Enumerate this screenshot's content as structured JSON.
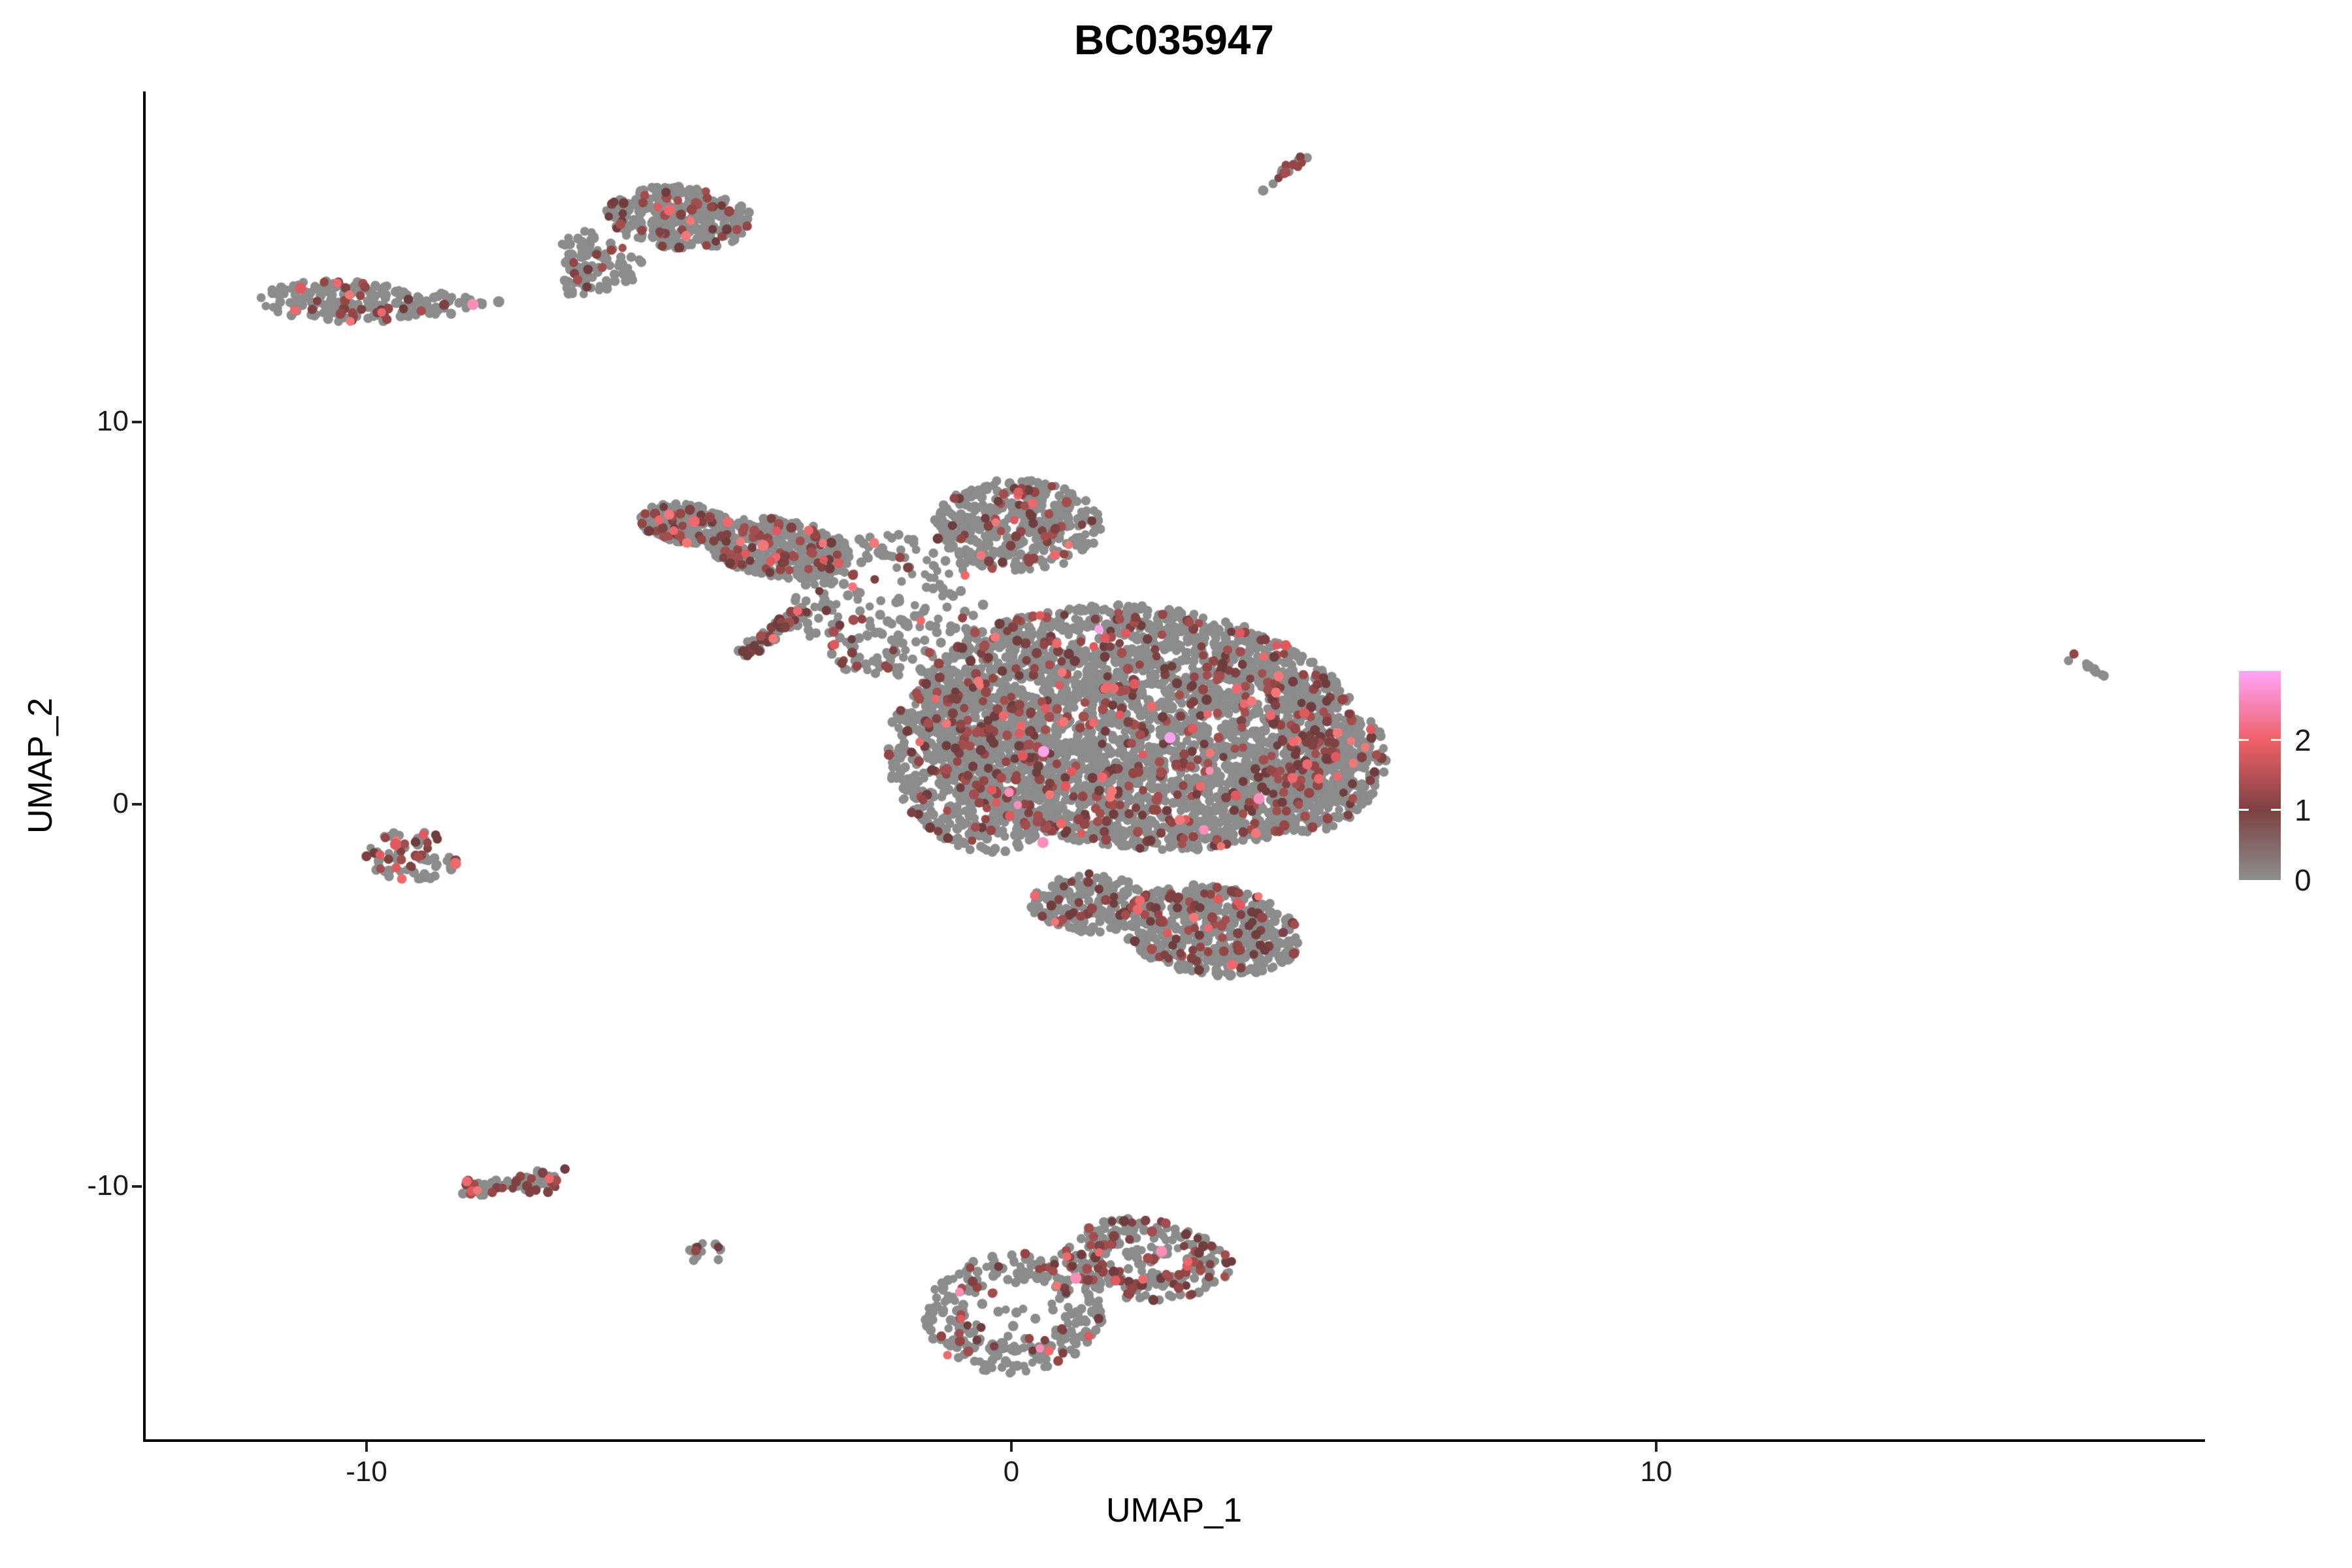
{
  "figure": {
    "title": "BC035947",
    "x_axis": {
      "label": "UMAP_1",
      "tick_labels": [
        "-10",
        "0",
        "10"
      ]
    },
    "y_axis": {
      "label": "UMAP_2",
      "tick_labels": [
        "10",
        "0",
        "-10"
      ]
    },
    "legend": {
      "tick_labels": [
        "2",
        "1",
        "0"
      ]
    }
  },
  "chart_data": {
    "type": "scatter",
    "title": "BC035947",
    "xlabel": "UMAP_1",
    "ylabel": "UMAP_2",
    "x_ticks": [
      -10,
      0,
      10
    ],
    "y_ticks": [
      10,
      0,
      -10
    ],
    "x_range_visible": [
      -13.4,
      18.5
    ],
    "y_range_visible": [
      -16.6,
      18.6
    ],
    "grid": false,
    "colorbar": {
      "ticks": [
        0,
        1,
        2
      ],
      "max": 3,
      "stops": [
        "#8E8E8E",
        "#7D4141",
        "#EF6068",
        "#FFA5FA"
      ]
    },
    "palette": {
      "grey": "#8C8C8C",
      "dark_shades": [
        "#6F3D3D",
        "#7E4242",
        "#934646",
        "#A34E4E"
      ],
      "bright_shades": [
        "#DE5A5F",
        "#EC6A6E",
        "#F17878"
      ],
      "pink": "#F78FB8",
      "magenta": "#FAA3EE"
    },
    "clusters": [
      {
        "name": "main-arm-tip",
        "shape": "ellipse",
        "cx": -5.05,
        "cy": 7.35,
        "rx": 0.75,
        "ry": 0.5,
        "angle": -18,
        "n": 220,
        "mix": {
          "dark": 0.16,
          "bright": 0.02
        }
      },
      {
        "name": "main-arm-mid",
        "shape": "ellipse",
        "cx": -3.6,
        "cy": 6.7,
        "rx": 1.15,
        "ry": 0.75,
        "angle": -18,
        "n": 380,
        "mix": {
          "dark": 0.15,
          "bright": 0.02
        }
      },
      {
        "name": "main-arm-streak",
        "shape": "streak",
        "x1": -4.15,
        "y1": 3.9,
        "x2": -3.25,
        "y2": 5.1,
        "w": 0.18,
        "n": 85,
        "mix": {
          "dark": 0.3,
          "bright": 0.05
        }
      },
      {
        "name": "main-bridge-sparse",
        "shape": "ellipse",
        "cx": -1.9,
        "cy": 5.2,
        "rx": 1.5,
        "ry": 1.9,
        "angle": 0,
        "n": 230,
        "mix": {
          "dark": 0.12,
          "bright": 0.02
        }
      },
      {
        "name": "main-top-bump",
        "shape": "ellipse",
        "cx": 0.1,
        "cy": 7.3,
        "rx": 1.3,
        "ry": 1.2,
        "angle": 0,
        "n": 420,
        "mix": {
          "dark": 0.12,
          "bright": 0.015
        }
      },
      {
        "name": "main-head",
        "shape": "ellipse",
        "cx": 2.0,
        "cy": 2.0,
        "rx": 3.6,
        "ry": 3.1,
        "angle": -28,
        "n": 3300,
        "mix": {
          "dark": 0.125,
          "bright": 0.018,
          "pink": 0.0015,
          "magenta": 0.0005
        }
      },
      {
        "name": "main-head-left-lower",
        "shape": "ellipse",
        "cx": -0.6,
        "cy": 1.0,
        "rx": 1.3,
        "ry": 2.3,
        "angle": 10,
        "n": 550,
        "mix": {
          "dark": 0.12,
          "bright": 0.015
        }
      },
      {
        "name": "main-right-edge",
        "shape": "ellipse",
        "cx": 4.9,
        "cy": 0.8,
        "rx": 0.85,
        "ry": 1.6,
        "angle": -15,
        "n": 300,
        "mix": {
          "dark": 0.14,
          "bright": 0.015
        }
      },
      {
        "name": "main-bottom-extension",
        "shape": "ellipse",
        "cx": 3.1,
        "cy": -3.3,
        "rx": 1.45,
        "ry": 1.15,
        "angle": -22,
        "n": 520,
        "mix": {
          "dark": 0.15,
          "bright": 0.02
        }
      },
      {
        "name": "main-bottom-notch",
        "shape": "ellipse",
        "cx": 1.2,
        "cy": -2.6,
        "rx": 0.9,
        "ry": 0.8,
        "angle": 0,
        "n": 180,
        "mix": {
          "dark": 0.13,
          "bright": 0.02
        }
      },
      {
        "name": "top-left-band",
        "shape": "ellipse",
        "cx": -10.35,
        "cy": 13.15,
        "rx": 1.3,
        "ry": 0.55,
        "angle": -4,
        "n": 185,
        "mix": {
          "dark": 0.12,
          "bright": 0.01
        }
      },
      {
        "name": "top-left-tail",
        "shape": "ellipse",
        "cx": -8.85,
        "cy": 13.1,
        "rx": 0.65,
        "ry": 0.28,
        "angle": 0,
        "n": 38,
        "mix": {
          "dark": 0.05
        }
      },
      {
        "name": "top-mid-main",
        "shape": "ellipse",
        "cx": -5.15,
        "cy": 15.35,
        "rx": 1.15,
        "ry": 0.8,
        "angle": -12,
        "n": 300,
        "mix": {
          "dark": 0.14,
          "bright": 0.015
        }
      },
      {
        "name": "top-mid-tail",
        "shape": "ellipse",
        "cx": -6.35,
        "cy": 14.2,
        "rx": 0.6,
        "ry": 0.85,
        "angle": 25,
        "n": 90,
        "mix": {
          "dark": 0.08
        }
      },
      {
        "name": "top-mid-tip",
        "shape": "ellipse",
        "cx": -6.8,
        "cy": 13.55,
        "rx": 0.3,
        "ry": 0.25,
        "angle": 0,
        "n": 14,
        "mix": {
          "dark": 0.05
        }
      },
      {
        "name": "top-streak",
        "shape": "streak",
        "x1": 3.85,
        "y1": 16.05,
        "x2": 4.55,
        "y2": 16.95,
        "w": 0.12,
        "n": 16,
        "mix": {
          "dark": 0.35
        }
      },
      {
        "name": "left-small",
        "shape": "ellipse",
        "cx": -9.3,
        "cy": -1.35,
        "rx": 0.75,
        "ry": 0.65,
        "angle": -10,
        "n": 75,
        "mix": {
          "dark": 0.26,
          "bright": 0.04
        }
      },
      {
        "name": "bottom-left-band",
        "shape": "streak",
        "x1": -8.45,
        "y1": -10.15,
        "x2": -7.0,
        "y2": -9.75,
        "w": 0.3,
        "n": 80,
        "mix": {
          "dark": 0.28,
          "bright": 0.03
        }
      },
      {
        "name": "tiny-bottom",
        "shape": "ellipse",
        "cx": -4.75,
        "cy": -11.75,
        "rx": 0.3,
        "ry": 0.3,
        "angle": 0,
        "n": 14,
        "mix": {
          "dark": 0.25
        }
      },
      {
        "name": "bottom-ring-left",
        "shape": "ring",
        "cx": 0.05,
        "cy": -13.3,
        "rx": 1.4,
        "ry": 1.6,
        "rin": 0.55,
        "fill": 0.08,
        "angle": -10,
        "n": 290,
        "mix": {
          "dark": 0.2,
          "bright": 0.02,
          "pink": 0.003
        }
      },
      {
        "name": "bottom-ring-right",
        "shape": "ring",
        "cx": 2.1,
        "cy": -11.9,
        "rx": 1.35,
        "ry": 1.05,
        "rin": 0.45,
        "fill": 0.1,
        "angle": -15,
        "n": 270,
        "mix": {
          "dark": 0.25,
          "bright": 0.025,
          "pink": 0.004
        }
      },
      {
        "name": "far-right-tiny",
        "shape": "streak",
        "x1": 16.4,
        "y1": 3.85,
        "x2": 16.95,
        "y2": 3.35,
        "w": 0.15,
        "n": 11,
        "mix": {
          "dark": 0.25
        }
      }
    ],
    "highlight_points": [
      {
        "x": -8.35,
        "y": 13.08,
        "c": "pink"
      },
      {
        "x": -11.02,
        "y": 13.5,
        "c": "bright"
      },
      {
        "x": -7.95,
        "y": 13.15,
        "c": "grey"
      },
      {
        "x": -5.3,
        "y": 15.55,
        "c": "bright"
      },
      {
        "x": -4.92,
        "y": 7.4,
        "c": "bright"
      },
      {
        "x": -3.85,
        "y": 6.77,
        "c": "bright"
      },
      {
        "x": 0.5,
        "y": 1.38,
        "c": "magenta"
      },
      {
        "x": 2.46,
        "y": 1.74,
        "c": "magenta"
      },
      {
        "x": 0.49,
        "y": -1.0,
        "c": "pink"
      },
      {
        "x": 3.84,
        "y": 0.15,
        "c": "pink"
      },
      {
        "x": -9.55,
        "y": -1.05,
        "c": "bright"
      },
      {
        "x": -8.62,
        "y": -1.55,
        "c": "bright"
      },
      {
        "x": 1.0,
        "y": -12.4,
        "c": "pink"
      },
      {
        "x": 2.33,
        "y": -11.7,
        "c": "pink"
      }
    ]
  }
}
